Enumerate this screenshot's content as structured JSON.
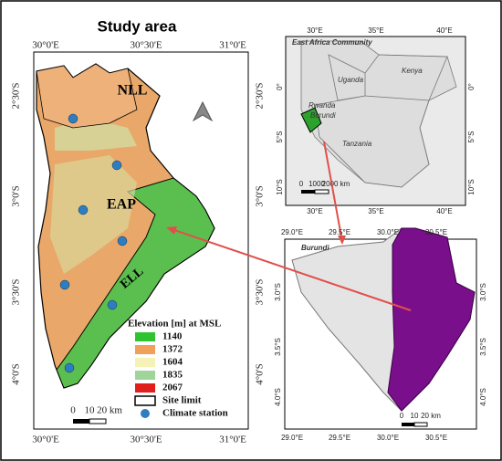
{
  "main_map": {
    "title": "Study area",
    "ticks": {
      "top": [
        "30°0'E",
        "30°30'E",
        "31°0'E"
      ],
      "bottom": [
        "30°0'E",
        "30°30'E",
        "31°0'E"
      ],
      "left": [
        "2°30'S",
        "3°0'S",
        "3°30'S",
        "4°0'S"
      ],
      "right": [
        "2°30'S",
        "3°0'S",
        "3°30'S",
        "4°0'S"
      ]
    },
    "zones": [
      "NLL",
      "EAP",
      "ELL"
    ],
    "legend": {
      "title": "Elevation [m] at MSL",
      "items": [
        {
          "label": 1140,
          "color": "#2fc42f"
        },
        {
          "label": 1372,
          "color": "#f0a05a"
        },
        {
          "label": 1604,
          "color": "#f5f2b8"
        },
        {
          "label": 1835,
          "color": "#9fd49a"
        },
        {
          "label": 2067,
          "color": "#e0201c"
        }
      ],
      "site_limit": "Site limit",
      "climate_station": "Climate station"
    },
    "scale": [
      "0",
      "10",
      "20 km"
    ]
  },
  "inset_east_africa": {
    "title": "East Africa Community",
    "ticks": {
      "top": [
        "30°E",
        "35°E",
        "40°E"
      ],
      "bottom": [
        "30°E",
        "35°E",
        "40°E"
      ],
      "left": [
        "0°",
        "5°S",
        "10°S"
      ],
      "right": [
        "0°",
        "5°S",
        "10°S"
      ]
    },
    "countries": [
      "Kenya",
      "Uganda",
      "Rwanda",
      "Burundi",
      "Tanzania"
    ],
    "scale": [
      "0",
      "1000",
      "2000 km"
    ]
  },
  "inset_burundi": {
    "title": "Burundi",
    "ticks": {
      "top": [
        "29.0°E",
        "29.5°E",
        "30.0°E",
        "30.5°E"
      ],
      "bottom": [
        "29.0°E",
        "29.5°E",
        "30.0°E",
        "30.5°E"
      ],
      "left": [
        "3.0°S",
        "3.5°S",
        "4.0°S"
      ],
      "right": [
        "3.0°S",
        "3.5°S",
        "4.0°S"
      ]
    },
    "scale": [
      "0",
      "10",
      "20 km"
    ]
  }
}
